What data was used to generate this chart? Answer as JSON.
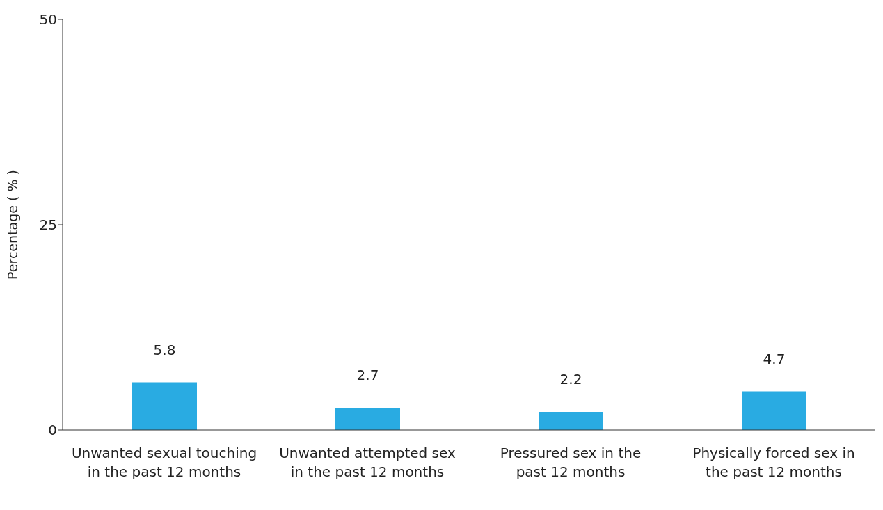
{
  "chart_data": {
    "type": "bar",
    "ylabel": "Percentage ( % )",
    "categories": [
      "Unwanted sexual touching in the past 12 months",
      "Unwanted attempted sex in the past 12 months",
      "Pressured sex in the past 12 months",
      "Physically forced sex in the past 12 months"
    ],
    "values": [
      5.8,
      2.7,
      2.2,
      4.7
    ],
    "color": "#29abe2",
    "ylim": [
      0,
      50
    ],
    "yticks": [
      0,
      25,
      50
    ],
    "grid": false,
    "data_labels": true
  }
}
